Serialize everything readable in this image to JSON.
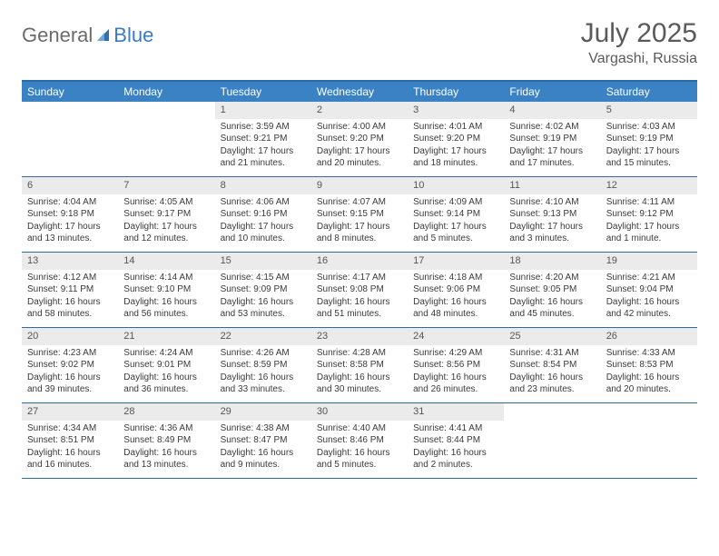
{
  "brand": {
    "name_part1": "General",
    "name_part2": "Blue"
  },
  "title": "July 2025",
  "location": "Vargashi, Russia",
  "colors": {
    "header_bar": "#3b82c4",
    "border": "#2b6ca3",
    "daynum_bg": "#ebebeb",
    "text": "#3a3a3a",
    "logo_gray": "#6b6b6b",
    "logo_blue": "#3b7bbf",
    "background": "#ffffff"
  },
  "typography": {
    "title_fontsize": 30,
    "location_fontsize": 16,
    "weekday_fontsize": 12,
    "daynum_fontsize": 11,
    "body_fontsize": 10
  },
  "weekdays": [
    "Sunday",
    "Monday",
    "Tuesday",
    "Wednesday",
    "Thursday",
    "Friday",
    "Saturday"
  ],
  "weeks": [
    [
      {
        "n": "",
        "sunrise": "",
        "sunset": "",
        "daylight": ""
      },
      {
        "n": "",
        "sunrise": "",
        "sunset": "",
        "daylight": ""
      },
      {
        "n": "1",
        "sunrise": "Sunrise: 3:59 AM",
        "sunset": "Sunset: 9:21 PM",
        "daylight": "Daylight: 17 hours and 21 minutes."
      },
      {
        "n": "2",
        "sunrise": "Sunrise: 4:00 AM",
        "sunset": "Sunset: 9:20 PM",
        "daylight": "Daylight: 17 hours and 20 minutes."
      },
      {
        "n": "3",
        "sunrise": "Sunrise: 4:01 AM",
        "sunset": "Sunset: 9:20 PM",
        "daylight": "Daylight: 17 hours and 18 minutes."
      },
      {
        "n": "4",
        "sunrise": "Sunrise: 4:02 AM",
        "sunset": "Sunset: 9:19 PM",
        "daylight": "Daylight: 17 hours and 17 minutes."
      },
      {
        "n": "5",
        "sunrise": "Sunrise: 4:03 AM",
        "sunset": "Sunset: 9:19 PM",
        "daylight": "Daylight: 17 hours and 15 minutes."
      }
    ],
    [
      {
        "n": "6",
        "sunrise": "Sunrise: 4:04 AM",
        "sunset": "Sunset: 9:18 PM",
        "daylight": "Daylight: 17 hours and 13 minutes."
      },
      {
        "n": "7",
        "sunrise": "Sunrise: 4:05 AM",
        "sunset": "Sunset: 9:17 PM",
        "daylight": "Daylight: 17 hours and 12 minutes."
      },
      {
        "n": "8",
        "sunrise": "Sunrise: 4:06 AM",
        "sunset": "Sunset: 9:16 PM",
        "daylight": "Daylight: 17 hours and 10 minutes."
      },
      {
        "n": "9",
        "sunrise": "Sunrise: 4:07 AM",
        "sunset": "Sunset: 9:15 PM",
        "daylight": "Daylight: 17 hours and 8 minutes."
      },
      {
        "n": "10",
        "sunrise": "Sunrise: 4:09 AM",
        "sunset": "Sunset: 9:14 PM",
        "daylight": "Daylight: 17 hours and 5 minutes."
      },
      {
        "n": "11",
        "sunrise": "Sunrise: 4:10 AM",
        "sunset": "Sunset: 9:13 PM",
        "daylight": "Daylight: 17 hours and 3 minutes."
      },
      {
        "n": "12",
        "sunrise": "Sunrise: 4:11 AM",
        "sunset": "Sunset: 9:12 PM",
        "daylight": "Daylight: 17 hours and 1 minute."
      }
    ],
    [
      {
        "n": "13",
        "sunrise": "Sunrise: 4:12 AM",
        "sunset": "Sunset: 9:11 PM",
        "daylight": "Daylight: 16 hours and 58 minutes."
      },
      {
        "n": "14",
        "sunrise": "Sunrise: 4:14 AM",
        "sunset": "Sunset: 9:10 PM",
        "daylight": "Daylight: 16 hours and 56 minutes."
      },
      {
        "n": "15",
        "sunrise": "Sunrise: 4:15 AM",
        "sunset": "Sunset: 9:09 PM",
        "daylight": "Daylight: 16 hours and 53 minutes."
      },
      {
        "n": "16",
        "sunrise": "Sunrise: 4:17 AM",
        "sunset": "Sunset: 9:08 PM",
        "daylight": "Daylight: 16 hours and 51 minutes."
      },
      {
        "n": "17",
        "sunrise": "Sunrise: 4:18 AM",
        "sunset": "Sunset: 9:06 PM",
        "daylight": "Daylight: 16 hours and 48 minutes."
      },
      {
        "n": "18",
        "sunrise": "Sunrise: 4:20 AM",
        "sunset": "Sunset: 9:05 PM",
        "daylight": "Daylight: 16 hours and 45 minutes."
      },
      {
        "n": "19",
        "sunrise": "Sunrise: 4:21 AM",
        "sunset": "Sunset: 9:04 PM",
        "daylight": "Daylight: 16 hours and 42 minutes."
      }
    ],
    [
      {
        "n": "20",
        "sunrise": "Sunrise: 4:23 AM",
        "sunset": "Sunset: 9:02 PM",
        "daylight": "Daylight: 16 hours and 39 minutes."
      },
      {
        "n": "21",
        "sunrise": "Sunrise: 4:24 AM",
        "sunset": "Sunset: 9:01 PM",
        "daylight": "Daylight: 16 hours and 36 minutes."
      },
      {
        "n": "22",
        "sunrise": "Sunrise: 4:26 AM",
        "sunset": "Sunset: 8:59 PM",
        "daylight": "Daylight: 16 hours and 33 minutes."
      },
      {
        "n": "23",
        "sunrise": "Sunrise: 4:28 AM",
        "sunset": "Sunset: 8:58 PM",
        "daylight": "Daylight: 16 hours and 30 minutes."
      },
      {
        "n": "24",
        "sunrise": "Sunrise: 4:29 AM",
        "sunset": "Sunset: 8:56 PM",
        "daylight": "Daylight: 16 hours and 26 minutes."
      },
      {
        "n": "25",
        "sunrise": "Sunrise: 4:31 AM",
        "sunset": "Sunset: 8:54 PM",
        "daylight": "Daylight: 16 hours and 23 minutes."
      },
      {
        "n": "26",
        "sunrise": "Sunrise: 4:33 AM",
        "sunset": "Sunset: 8:53 PM",
        "daylight": "Daylight: 16 hours and 20 minutes."
      }
    ],
    [
      {
        "n": "27",
        "sunrise": "Sunrise: 4:34 AM",
        "sunset": "Sunset: 8:51 PM",
        "daylight": "Daylight: 16 hours and 16 minutes."
      },
      {
        "n": "28",
        "sunrise": "Sunrise: 4:36 AM",
        "sunset": "Sunset: 8:49 PM",
        "daylight": "Daylight: 16 hours and 13 minutes."
      },
      {
        "n": "29",
        "sunrise": "Sunrise: 4:38 AM",
        "sunset": "Sunset: 8:47 PM",
        "daylight": "Daylight: 16 hours and 9 minutes."
      },
      {
        "n": "30",
        "sunrise": "Sunrise: 4:40 AM",
        "sunset": "Sunset: 8:46 PM",
        "daylight": "Daylight: 16 hours and 5 minutes."
      },
      {
        "n": "31",
        "sunrise": "Sunrise: 4:41 AM",
        "sunset": "Sunset: 8:44 PM",
        "daylight": "Daylight: 16 hours and 2 minutes."
      },
      {
        "n": "",
        "sunrise": "",
        "sunset": "",
        "daylight": ""
      },
      {
        "n": "",
        "sunrise": "",
        "sunset": "",
        "daylight": ""
      }
    ]
  ]
}
